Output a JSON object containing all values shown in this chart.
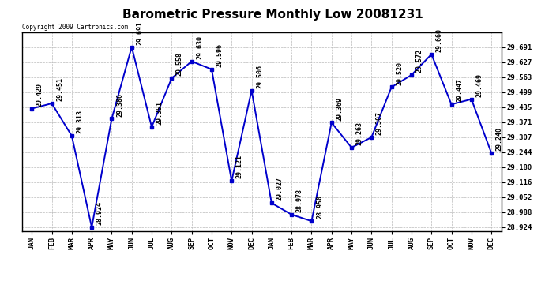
{
  "title": "Barometric Pressure Monthly Low 20081231",
  "copyright": "Copyright 2009 Cartronics.com",
  "months": [
    "JAN",
    "FEB",
    "MAR",
    "APR",
    "MAY",
    "JUN",
    "JUL",
    "AUG",
    "SEP",
    "OCT",
    "NOV",
    "DEC",
    "JAN",
    "FEB",
    "MAR",
    "APR",
    "MAY",
    "JUN",
    "JUL",
    "AUG",
    "SEP",
    "OCT",
    "NOV",
    "DEC"
  ],
  "values": [
    29.429,
    29.451,
    29.313,
    28.924,
    29.386,
    29.691,
    29.351,
    29.558,
    29.63,
    29.596,
    29.121,
    29.506,
    29.027,
    28.978,
    28.95,
    29.369,
    29.263,
    29.307,
    29.52,
    29.572,
    29.66,
    29.447,
    29.469,
    29.24
  ],
  "ymin": 28.924,
  "ymax": 29.691,
  "yticks": [
    28.924,
    28.988,
    29.052,
    29.116,
    29.18,
    29.244,
    29.307,
    29.371,
    29.435,
    29.499,
    29.563,
    29.627,
    29.691
  ],
  "line_color": "#0000cc",
  "marker_color": "#0000cc",
  "bg_color": "#ffffff",
  "grid_color": "#bbbbbb",
  "title_fontsize": 11,
  "tick_fontsize": 6.5,
  "annotation_fontsize": 6,
  "copyright_fontsize": 5.5
}
